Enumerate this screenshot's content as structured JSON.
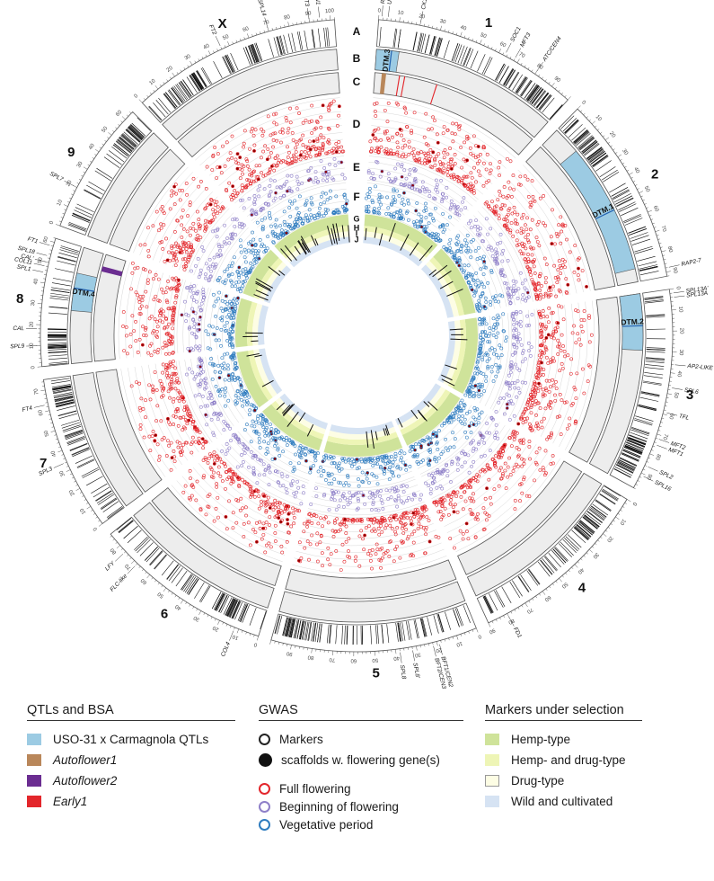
{
  "chromosomes": [
    {
      "label": "1",
      "size": 100,
      "ticks": [
        0,
        10,
        20,
        30,
        40,
        50,
        60,
        70,
        80,
        90
      ]
    },
    {
      "label": "2",
      "size": 92,
      "ticks": [
        0,
        10,
        20,
        30,
        40,
        50,
        60,
        70,
        80,
        90
      ]
    },
    {
      "label": "3",
      "size": 98,
      "ticks": [
        0,
        10,
        20,
        30,
        40,
        50,
        60,
        70,
        80,
        90
      ]
    },
    {
      "label": "4",
      "size": 90,
      "ticks": [
        0,
        10,
        20,
        30,
        40,
        50,
        60,
        70,
        80,
        90
      ]
    },
    {
      "label": "5",
      "size": 100,
      "ticks": [
        0,
        10,
        20,
        30,
        40,
        50,
        60,
        70,
        80,
        90
      ]
    },
    {
      "label": "6",
      "size": 87,
      "ticks": [
        0,
        10,
        20,
        30,
        40,
        50,
        60,
        70,
        80
      ]
    },
    {
      "label": "7",
      "size": 75,
      "ticks": [
        0,
        10,
        20,
        30,
        40,
        50,
        60,
        70
      ]
    },
    {
      "label": "8",
      "size": 62,
      "ticks": [
        0,
        10,
        20,
        30,
        40,
        50,
        60
      ]
    },
    {
      "label": "9",
      "size": 65,
      "ticks": [
        0,
        10,
        20,
        30,
        40,
        50,
        60
      ]
    },
    {
      "label": "X",
      "size": 102,
      "ticks": [
        0,
        10,
        20,
        30,
        40,
        50,
        60,
        70,
        80,
        90,
        100
      ]
    }
  ],
  "track_labels": [
    "A",
    "B",
    "C",
    "D",
    "E",
    "F",
    "G",
    "H",
    "I",
    "J"
  ],
  "genes": [
    {
      "name": "RAP2-7/AP2",
      "chrom": 0,
      "pos": 1.5
    },
    {
      "name": "UPF",
      "chrom": 0,
      "pos": 4.5
    },
    {
      "name": "CK1",
      "chrom": 0,
      "pos": 20
    },
    {
      "name": "SOC1",
      "chrom": 0,
      "pos": 63
    },
    {
      "name": "MFT3",
      "chrom": 0,
      "pos": 68
    },
    {
      "name": "ATC/CEN4",
      "chrom": 0,
      "pos": 80
    },
    {
      "name": "RAP2-7",
      "chrom": 1,
      "pos": 88
    },
    {
      "name": "SPL13A'",
      "chrom": 2,
      "pos": 2
    },
    {
      "name": "SPL13A",
      "chrom": 2,
      "pos": 4
    },
    {
      "name": "AP2-LIKE",
      "chrom": 2,
      "pos": 36
    },
    {
      "name": "SPL6",
      "chrom": 2,
      "pos": 47
    },
    {
      "name": "TFL",
      "chrom": 2,
      "pos": 59
    },
    {
      "name": "MFT2",
      "chrom": 2,
      "pos": 72
    },
    {
      "name": "MFT1",
      "chrom": 2,
      "pos": 75
    },
    {
      "name": "SPL2",
      "chrom": 2,
      "pos": 86
    },
    {
      "name": "SPL16",
      "chrom": 2,
      "pos": 91
    },
    {
      "name": "FD1",
      "chrom": 3,
      "pos": 80
    },
    {
      "name": "BFT1/CEN2",
      "chrom": 4,
      "pos": 19
    },
    {
      "name": "BFT2/CEN3",
      "chrom": 4,
      "pos": 22
    },
    {
      "name": "SPL8'",
      "chrom": 4,
      "pos": 32
    },
    {
      "name": "SPL8",
      "chrom": 4,
      "pos": 38
    },
    {
      "name": "COL4",
      "chrom": 5,
      "pos": 12
    },
    {
      "name": "FLC-like",
      "chrom": 5,
      "pos": 68
    },
    {
      "name": "LFY",
      "chrom": 5,
      "pos": 76
    },
    {
      "name": "SPL3",
      "chrom": 6,
      "pos": 34
    },
    {
      "name": "FT4",
      "chrom": 6,
      "pos": 63
    },
    {
      "name": "SPL9",
      "chrom": 7,
      "pos": 10
    },
    {
      "name": "CAL",
      "chrom": 7,
      "pos": 18
    },
    {
      "name": "SPL1",
      "chrom": 7,
      "pos": 45
    },
    {
      "name": "COL11",
      "chrom": 7,
      "pos": 48
    },
    {
      "name": "CAL'",
      "chrom": 7,
      "pos": 50
    },
    {
      "name": "SPL18",
      "chrom": 7,
      "pos": 53
    },
    {
      "name": "FT1",
      "chrom": 7,
      "pos": 58
    },
    {
      "name": "SPL7",
      "chrom": 8,
      "pos": 20
    },
    {
      "name": "FT2",
      "chrom": 9,
      "pos": 46
    },
    {
      "name": "SPL14",
      "chrom": 9,
      "pos": 70
    },
    {
      "name": "FT3",
      "chrom": 9,
      "pos": 90
    },
    {
      "name": "BFT3/CEN1",
      "chrom": 9,
      "pos": 95
    }
  ],
  "qtls": [
    {
      "name": "DTM.3",
      "chrom": 0,
      "start": 0,
      "end": 12
    },
    {
      "name": "DTM.1",
      "chrom": 1,
      "start": 15,
      "end": 85
    },
    {
      "name": "DTM.2",
      "chrom": 2,
      "start": 0,
      "end": 30
    },
    {
      "name": "DTM.4",
      "chrom": 7,
      "start": 28,
      "end": 48
    }
  ],
  "legend": {
    "qtl": {
      "title": "QTLs and BSA",
      "items": [
        {
          "label": "USO-31 x Carmagnola QTLs",
          "color": "#9ccbe3",
          "italic": false
        },
        {
          "label": "Autoflower1",
          "color": "#b9875a",
          "italic": true
        },
        {
          "label": "Autoflower2",
          "color": "#6b2d91",
          "italic": true
        },
        {
          "label": "Early1",
          "color": "#e3262b",
          "italic": true
        }
      ]
    },
    "gwas": {
      "title": "GWAS",
      "markers_label": "Markers",
      "scaffold_label": "scaffolds w. flowering gene(s)",
      "series": [
        {
          "label": "Full flowering",
          "color": "#e3262b"
        },
        {
          "label": "Beginning of flowering",
          "color": "#8e7fc8"
        },
        {
          "label": "Vegetative period",
          "color": "#2f7cbf"
        }
      ]
    },
    "selection": {
      "title": "Markers under selection",
      "items": [
        {
          "label": "Hemp-type",
          "color": "#cfe39a"
        },
        {
          "label": "Hemp- and drug-type",
          "color": "#eef5b6"
        },
        {
          "label": "Drug-type",
          "color": "#fdfde4"
        },
        {
          "label": "Wild and cultivated",
          "color": "#d6e3f3"
        }
      ]
    }
  },
  "colors": {
    "full_flowering": "#e3262b",
    "beginning_flowering": "#8e7fc8",
    "vegetative": "#2f7cbf",
    "qtl": "#9ccbe3",
    "autoflower1": "#b9875a",
    "autoflower2": "#6b2d91",
    "early1": "#e3262b",
    "hemp": "#cfe39a",
    "hemp_drug": "#eef5b6",
    "drug": "#fdfde4",
    "wild": "#d6e3f3",
    "panel": "#ededed"
  }
}
